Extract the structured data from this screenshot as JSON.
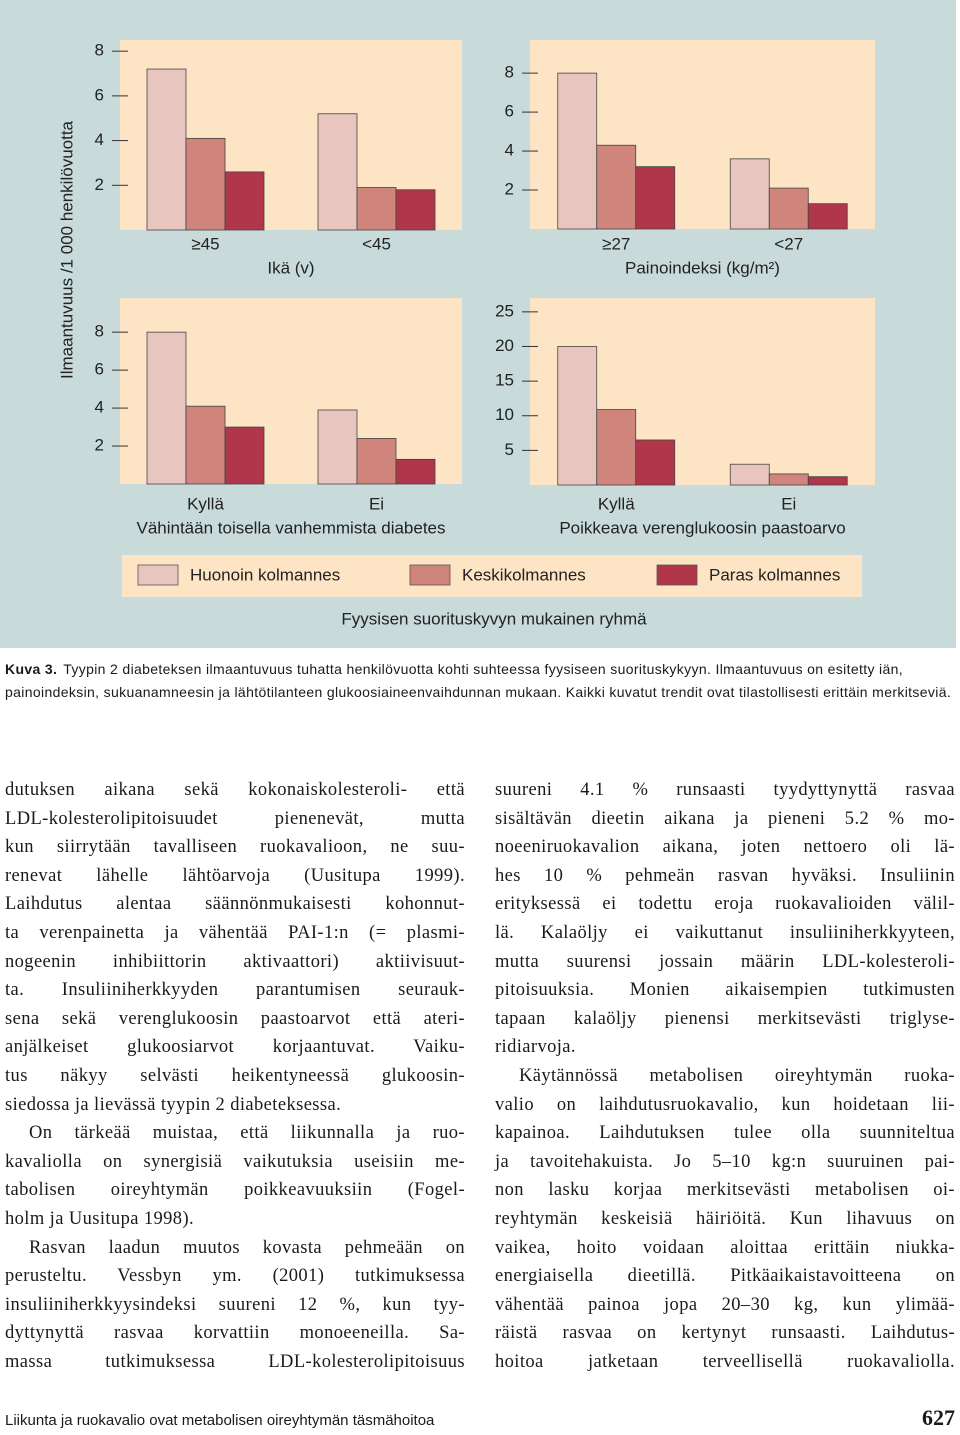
{
  "figure": {
    "y_axis_label": "Ilmaantuvuus /1 000 henkilövuotta",
    "legend": {
      "title": "Fyysisen suorituskyvyn mukainen ryhmä",
      "entries": [
        {
          "name": "Huonoin kolmannes",
          "color": "#e8c6bf"
        },
        {
          "name": "Keskikolmannes",
          "color": "#d0857c"
        },
        {
          "name": "Paras kolmannes",
          "color": "#b0374a"
        }
      ]
    }
  },
  "chart_data": [
    {
      "type": "bar",
      "categories": [
        "≥45",
        "<45"
      ],
      "xlabel": "Ikä (v)",
      "series": [
        {
          "values": [
            7.2,
            5.2
          ]
        },
        {
          "values": [
            4.1,
            1.9
          ]
        },
        {
          "values": [
            2.6,
            1.8
          ]
        }
      ],
      "ylim": [
        0,
        8.5
      ],
      "yticks": [
        2,
        4,
        6,
        8
      ]
    },
    {
      "type": "bar",
      "categories": [
        "≥27",
        "<27"
      ],
      "xlabel": "Painoindeksi (kg/m²)",
      "series": [
        {
          "values": [
            8.0,
            3.6
          ]
        },
        {
          "values": [
            4.3,
            2.1
          ]
        },
        {
          "values": [
            3.2,
            1.3
          ]
        }
      ],
      "ylim": [
        0,
        9.7
      ],
      "yticks": [
        2,
        4,
        6,
        8
      ]
    },
    {
      "type": "bar",
      "categories": [
        "Kyllä",
        "Ei"
      ],
      "xlabel": "Vähintään toisella vanhemmista diabetes",
      "series": [
        {
          "values": [
            8.0,
            3.9
          ]
        },
        {
          "values": [
            4.1,
            2.4
          ]
        },
        {
          "values": [
            3.0,
            1.3
          ]
        }
      ],
      "ylim": [
        0,
        9.8
      ],
      "yticks": [
        2,
        4,
        6,
        8
      ]
    },
    {
      "type": "bar",
      "categories": [
        "Kyllä",
        "Ei"
      ],
      "xlabel": "Poikkeava verenglukoosin paastoarvo",
      "series": [
        {
          "values": [
            20,
            3.0
          ]
        },
        {
          "values": [
            10.9,
            1.6
          ]
        },
        {
          "values": [
            6.5,
            1.2
          ]
        }
      ],
      "ylim": [
        0,
        27
      ],
      "yticks": [
        5,
        10,
        15,
        20,
        25
      ]
    }
  ],
  "caption": {
    "label": "Kuva 3.",
    "text": "Tyypin 2 diabeteksen ilmaantuvuus tuhatta henkilövuotta kohti suhteessa fyysiseen suorituskykyyn. Ilmaantuvuus on esitetty iän, painoindeksin, sukuanamneesin ja lähtötilanteen glukoosiaineenvaihdunnan mukaan. Kaikki kuvatut trendit ovat tilastollisesti erittäin merkitseviä."
  },
  "body": {
    "left": [
      [
        "dutuksen aikana sekä kokonaiskolesteroli- että",
        "LDL-kolesterolipitoisuudet pienenevät, mutta",
        "kun siirrytään tavalliseen ruokavalioon, ne suu-",
        "renevat lähelle lähtöarvoja (Uusitupa 1999).",
        "Laihdutus alentaa säännönmukaisesti kohonnut-",
        "ta verenpainetta ja vähentää PAI-1:n (= plasmi-",
        "nogeenin inhibiittorin aktivaattori) aktiivisuut-",
        "ta. Insuliiniherkkyyden parantumisen seurauk-",
        "sena sekä verenglukoosin paastoarvot että ateri-",
        "anjälkeiset glukoosiarvot korjaantuvat. Vaiku-",
        "tus näkyy selvästi heikentyneessä glukoosin-",
        "siedossa ja lievässä tyypin 2 diabeteksessa."
      ],
      [
        "On tärkeää muistaa, että liikunnalla ja ruo-",
        "kavaliolla on synergisiä vaikutuksia useisiin me-",
        "tabolisen oireyhtymän poikkeavuuksiin (Fogel-",
        "holm ja Uusitupa 1998)."
      ],
      [
        "Rasvan laadun muutos kovasta pehmeään on",
        "perusteltu. Vessbyn ym. (2001) tutkimuksessa",
        "insuliiniherkkyysindeksi suureni 12 %, kun tyy-",
        "dyttynyttä rasvaa korvattiin monoeeneilla. Sa-",
        "massa tutkimuksessa LDL-kolesterolipitoisuus"
      ]
    ],
    "right": [
      [
        "suureni 4.1 % runsaasti tyydyttynyttä rasvaa",
        "sisältävän dieetin aikana ja pieneni 5.2 % mo-",
        "noeeniruokavalion aikana, joten nettoero oli lä-",
        "hes 10 % pehmeän rasvan hyväksi. Insuliinin",
        "erityksessä ei todettu eroja ruokavalioiden välil-",
        "lä. Kalaöljy ei vaikuttanut insuliiniherkkyyteen,",
        "mutta suurensi jossain määrin LDL-kolesteroli-",
        "pitoisuuksia. Monien aikaisempien tutkimusten",
        "tapaan kalaöljy pienensi merkitsevästi triglyse-",
        "ridiarvoja."
      ],
      [
        "Käytännössä metabolisen oireyhtymän ruoka-",
        "valio on laihdutusruokavalio, kun hoidetaan lii-",
        "kapainoa. Laihdutuksen tulee olla suunniteltua",
        "ja tavoitehakuista. Jo 5–10 kg:n suuruinen pai-",
        "non lasku korjaa merkitsevästi metabolisen oi-",
        "reyhtymän keskeisiä häiriöitä. Kun lihavuus on",
        "vaikea, hoito voidaan aloittaa erittäin niukka-",
        "energiaisella dieetillä. Pitkäaikaistavoitteena on",
        "vähentää painoa jopa 20–30 kg, kun ylimää-",
        "räistä rasvaa on kertynyt runsaasti. Laihdutus-",
        "hoitoa jatketaan terveellisellä ruokavaliolla."
      ]
    ]
  },
  "footer": {
    "running_title": "Liikunta ja ruokavalio ovat metabolisen oireyhtymän täsmähoitoa",
    "page_number": "627"
  }
}
